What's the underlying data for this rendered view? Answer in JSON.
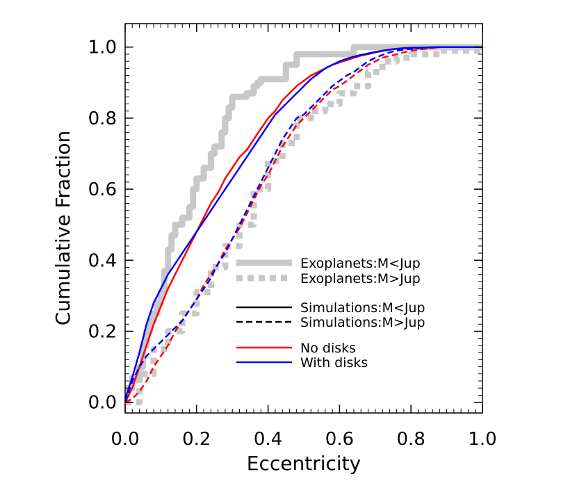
{
  "chart_data": {
    "type": "line",
    "title": "",
    "xlabel": "Eccentricity",
    "ylabel": "Cumulative Fraction",
    "xlim": [
      0.0,
      1.0
    ],
    "ylim": [
      0.0,
      1.0
    ],
    "xticks": [
      "0.0",
      "0.2",
      "0.4",
      "0.6",
      "0.8",
      "1.0"
    ],
    "yticks": [
      "0.0",
      "0.2",
      "0.4",
      "0.6",
      "0.8",
      "1.0"
    ],
    "grid": false,
    "legend_position": "center-right",
    "legend_groups": [
      {
        "items": [
          {
            "label": "Exoplanets:M<Jup",
            "color": "#c8c8c8",
            "style": "thick-solid"
          },
          {
            "label": "Exoplanets:M>Jup",
            "color": "#c8c8c8",
            "style": "thick-dotted"
          }
        ]
      },
      {
        "items": [
          {
            "label": "Simulations:M<Jup",
            "color": "#000000",
            "style": "solid"
          },
          {
            "label": "Simulations:M>Jup",
            "color": "#000000",
            "style": "dashed"
          }
        ]
      },
      {
        "items": [
          {
            "label": "No disks",
            "color": "#ff0000",
            "style": "solid"
          },
          {
            "label": "With disks",
            "color": "#0000ff",
            "style": "solid"
          }
        ]
      }
    ],
    "series": [
      {
        "color": "#c8c8c8",
        "style": "thick-solid",
        "step": true,
        "x": [
          0.0,
          0.02,
          0.04,
          0.05,
          0.06,
          0.07,
          0.08,
          0.09,
          0.1,
          0.11,
          0.12,
          0.13,
          0.14,
          0.16,
          0.18,
          0.19,
          0.2,
          0.22,
          0.24,
          0.25,
          0.27,
          0.28,
          0.29,
          0.3,
          0.31,
          0.32,
          0.34,
          0.36,
          0.37,
          0.38,
          0.4,
          0.44,
          0.45,
          0.48,
          0.49,
          0.62,
          0.64,
          1.0
        ],
        "y": [
          0.04,
          0.07,
          0.1,
          0.16,
          0.2,
          0.23,
          0.25,
          0.28,
          0.31,
          0.37,
          0.43,
          0.47,
          0.5,
          0.52,
          0.55,
          0.6,
          0.63,
          0.66,
          0.7,
          0.72,
          0.76,
          0.8,
          0.83,
          0.86,
          0.86,
          0.86,
          0.87,
          0.89,
          0.9,
          0.91,
          0.91,
          0.91,
          0.95,
          0.98,
          0.98,
          0.98,
          1.0,
          1.0
        ]
      },
      {
        "color": "#c8c8c8",
        "style": "thick-dotted",
        "step": true,
        "x": [
          0.0,
          0.04,
          0.08,
          0.12,
          0.16,
          0.2,
          0.24,
          0.28,
          0.32,
          0.36,
          0.4,
          0.44,
          0.48,
          0.52,
          0.56,
          0.6,
          0.64,
          0.68,
          0.72,
          0.76,
          0.8,
          0.84,
          0.88,
          0.92,
          1.0
        ],
        "y": [
          0.0,
          0.08,
          0.15,
          0.2,
          0.25,
          0.31,
          0.38,
          0.44,
          0.5,
          0.6,
          0.68,
          0.73,
          0.8,
          0.82,
          0.84,
          0.87,
          0.89,
          0.93,
          0.96,
          0.97,
          0.98,
          0.98,
          0.99,
          0.99,
          1.0
        ]
      },
      {
        "color": "#ff0000",
        "style": "solid",
        "step": false,
        "x": [
          0.0,
          0.02,
          0.04,
          0.06,
          0.08,
          0.1,
          0.12,
          0.14,
          0.16,
          0.18,
          0.2,
          0.22,
          0.24,
          0.26,
          0.28,
          0.3,
          0.32,
          0.34,
          0.36,
          0.38,
          0.4,
          0.42,
          0.44,
          0.46,
          0.48,
          0.5,
          0.52,
          0.54,
          0.56,
          0.58,
          0.6,
          0.62,
          0.64,
          0.66,
          0.68,
          0.7,
          0.72,
          0.74,
          0.76,
          0.78,
          0.8,
          0.84,
          0.88,
          0.92,
          0.96,
          1.0
        ],
        "y": [
          0.0,
          0.04,
          0.1,
          0.16,
          0.22,
          0.27,
          0.32,
          0.36,
          0.4,
          0.44,
          0.48,
          0.52,
          0.56,
          0.59,
          0.63,
          0.66,
          0.69,
          0.71,
          0.74,
          0.77,
          0.8,
          0.82,
          0.85,
          0.87,
          0.89,
          0.905,
          0.92,
          0.93,
          0.94,
          0.95,
          0.957,
          0.963,
          0.97,
          0.976,
          0.98,
          0.985,
          0.989,
          0.992,
          0.995,
          0.997,
          0.998,
          0.999,
          1.0,
          1.0,
          1.0,
          1.0
        ]
      },
      {
        "color": "#ff0000",
        "style": "dashed",
        "step": false,
        "x": [
          0.0,
          0.02,
          0.04,
          0.06,
          0.08,
          0.1,
          0.12,
          0.14,
          0.16,
          0.18,
          0.2,
          0.22,
          0.24,
          0.26,
          0.28,
          0.3,
          0.32,
          0.34,
          0.36,
          0.38,
          0.4,
          0.42,
          0.44,
          0.46,
          0.48,
          0.5,
          0.52,
          0.54,
          0.56,
          0.58,
          0.6,
          0.62,
          0.64,
          0.66,
          0.68,
          0.7,
          0.72,
          0.74,
          0.76,
          0.8,
          0.84,
          0.88,
          0.92,
          0.96,
          1.0
        ],
        "y": [
          0.0,
          0.01,
          0.03,
          0.06,
          0.1,
          0.13,
          0.16,
          0.2,
          0.23,
          0.26,
          0.29,
          0.33,
          0.36,
          0.39,
          0.43,
          0.46,
          0.49,
          0.53,
          0.57,
          0.61,
          0.64,
          0.68,
          0.72,
          0.75,
          0.78,
          0.8,
          0.82,
          0.84,
          0.86,
          0.88,
          0.89,
          0.905,
          0.92,
          0.935,
          0.95,
          0.96,
          0.97,
          0.975,
          0.98,
          0.99,
          0.995,
          1.0,
          1.0,
          1.0,
          1.0
        ]
      },
      {
        "color": "#0000ff",
        "style": "solid",
        "step": false,
        "x": [
          0.0,
          0.02,
          0.04,
          0.06,
          0.08,
          0.1,
          0.12,
          0.14,
          0.16,
          0.18,
          0.2,
          0.22,
          0.24,
          0.26,
          0.28,
          0.3,
          0.32,
          0.34,
          0.36,
          0.38,
          0.4,
          0.42,
          0.44,
          0.46,
          0.48,
          0.5,
          0.52,
          0.54,
          0.56,
          0.58,
          0.6,
          0.62,
          0.64,
          0.66,
          0.68,
          0.7,
          0.72,
          0.74,
          0.76,
          0.78,
          0.8,
          0.84,
          0.88,
          0.92,
          0.96,
          1.0
        ],
        "y": [
          0.01,
          0.07,
          0.14,
          0.22,
          0.28,
          0.32,
          0.36,
          0.39,
          0.42,
          0.45,
          0.48,
          0.51,
          0.54,
          0.57,
          0.6,
          0.63,
          0.66,
          0.69,
          0.72,
          0.75,
          0.78,
          0.81,
          0.83,
          0.85,
          0.87,
          0.89,
          0.91,
          0.925,
          0.94,
          0.95,
          0.96,
          0.967,
          0.973,
          0.978,
          0.982,
          0.986,
          0.99,
          0.993,
          0.995,
          0.997,
          0.998,
          0.999,
          1.0,
          1.0,
          1.0,
          1.0
        ]
      },
      {
        "color": "#0000ff",
        "style": "dashed",
        "step": false,
        "x": [
          0.0,
          0.02,
          0.04,
          0.06,
          0.08,
          0.1,
          0.12,
          0.14,
          0.16,
          0.18,
          0.2,
          0.22,
          0.24,
          0.26,
          0.28,
          0.3,
          0.32,
          0.34,
          0.36,
          0.38,
          0.4,
          0.42,
          0.44,
          0.46,
          0.48,
          0.5,
          0.52,
          0.54,
          0.56,
          0.58,
          0.6,
          0.62,
          0.64,
          0.66,
          0.68,
          0.7,
          0.72,
          0.74,
          0.76,
          0.8,
          0.84,
          0.88,
          0.92,
          0.96,
          1.0
        ],
        "y": [
          0.0,
          0.06,
          0.1,
          0.13,
          0.15,
          0.17,
          0.19,
          0.21,
          0.23,
          0.26,
          0.29,
          0.32,
          0.35,
          0.39,
          0.42,
          0.46,
          0.5,
          0.54,
          0.58,
          0.62,
          0.66,
          0.7,
          0.74,
          0.77,
          0.8,
          0.81,
          0.83,
          0.85,
          0.87,
          0.89,
          0.905,
          0.92,
          0.93,
          0.945,
          0.96,
          0.97,
          0.978,
          0.985,
          0.99,
          0.995,
          0.998,
          1.0,
          1.0,
          1.0,
          1.0
        ]
      }
    ]
  }
}
